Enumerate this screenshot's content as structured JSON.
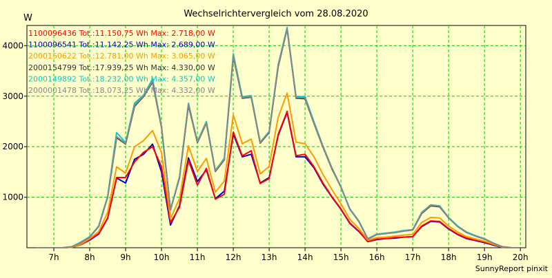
{
  "chart_data": {
    "type": "line",
    "title": "Wechselrichtervergleich vom 28.08.2020",
    "ylabel": "W",
    "xlabel": "",
    "footer": "SunnyReport pinxit",
    "grid": true,
    "ylim": [
      0,
      4400
    ],
    "xlim": [
      6.25,
      20.15
    ],
    "x_ticks": [
      {
        "x": 7,
        "label": "7h"
      },
      {
        "x": 8,
        "label": "8h"
      },
      {
        "x": 9,
        "label": "9h"
      },
      {
        "x": 10,
        "label": "10h"
      },
      {
        "x": 11,
        "label": "11h"
      },
      {
        "x": 12,
        "label": "12h"
      },
      {
        "x": 13,
        "label": "13h"
      },
      {
        "x": 14,
        "label": "14h"
      },
      {
        "x": 15,
        "label": "15h"
      },
      {
        "x": 16,
        "label": "16h"
      },
      {
        "x": 17,
        "label": "17h"
      },
      {
        "x": 18,
        "label": "18h"
      },
      {
        "x": 19,
        "label": "19h"
      },
      {
        "x": 20,
        "label": "20h"
      }
    ],
    "y_ticks": [
      {
        "y": 1000,
        "label": "1000"
      },
      {
        "y": 2000,
        "label": "2000"
      },
      {
        "y": 3000,
        "label": "3000"
      },
      {
        "y": 4000,
        "label": "4000"
      }
    ],
    "x": [
      6.5,
      6.75,
      7.0,
      7.25,
      7.5,
      7.75,
      8.0,
      8.25,
      8.5,
      8.75,
      9.0,
      9.25,
      9.5,
      9.75,
      10.0,
      10.25,
      10.5,
      10.75,
      11.0,
      11.25,
      11.5,
      11.75,
      12.0,
      12.25,
      12.5,
      12.75,
      13.0,
      13.25,
      13.5,
      13.75,
      14.0,
      14.25,
      14.5,
      14.75,
      15.0,
      15.25,
      15.5,
      15.75,
      16.0,
      16.25,
      16.5,
      16.75,
      17.0,
      17.25,
      17.5,
      17.75,
      18.0,
      18.25,
      18.5,
      18.75,
      19.0,
      19.25,
      19.5,
      19.75,
      20.0
    ],
    "series": [
      {
        "name": "1100096436",
        "legend": "1100096436 Tot.:11.150,75 Wh Max: 2.718,00 W",
        "color": "#FF0000",
        "values": [
          0,
          0,
          0,
          0,
          10,
          60,
          160,
          280,
          590,
          1390,
          1390,
          1700,
          1890,
          2000,
          1600,
          500,
          800,
          1730,
          1240,
          1570,
          960,
          1060,
          2290,
          1820,
          1920,
          1270,
          1370,
          2240,
          2700,
          1820,
          1850,
          1600,
          1280,
          1010,
          770,
          490,
          330,
          120,
          170,
          180,
          200,
          210,
          220,
          430,
          530,
          520,
          380,
          270,
          190,
          150,
          110,
          60,
          10,
          0,
          0
        ]
      },
      {
        "name": "1100096541",
        "legend": "1100096541 Tot.:11.142,25 Wh Max: 2.689,00 W",
        "color": "#0000CC",
        "values": [
          0,
          0,
          0,
          0,
          10,
          60,
          150,
          270,
          580,
          1380,
          1280,
          1750,
          1850,
          2050,
          1500,
          450,
          830,
          1780,
          1310,
          1540,
          970,
          1120,
          2250,
          1800,
          1850,
          1280,
          1390,
          2220,
          2680,
          1800,
          1800,
          1580,
          1260,
          1000,
          760,
          480,
          320,
          120,
          160,
          180,
          190,
          210,
          220,
          420,
          520,
          510,
          370,
          260,
          180,
          140,
          100,
          50,
          5,
          0,
          0
        ]
      },
      {
        "name": "2000150622",
        "legend": "2000150622 Tot.:12.781,00 Wh Max: 3.065,00 W",
        "color": "#FF9900",
        "values": [
          0,
          0,
          0,
          0,
          10,
          70,
          180,
          320,
          700,
          1600,
          1480,
          2000,
          2120,
          2320,
          1880,
          580,
          970,
          2020,
          1510,
          1770,
          1100,
          1320,
          2630,
          2060,
          2150,
          1460,
          1610,
          2580,
          3060,
          2090,
          2060,
          1800,
          1450,
          1150,
          870,
          560,
          380,
          150,
          200,
          210,
          230,
          250,
          260,
          500,
          600,
          590,
          430,
          310,
          220,
          170,
          130,
          70,
          10,
          0,
          0
        ]
      },
      {
        "name": "2000154799",
        "legend": "2000154799 Tot.:17.939,25 Wh Max: 4.330,00 W",
        "color": "#333333",
        "values": [
          0,
          0,
          0,
          0,
          20,
          100,
          210,
          420,
          1000,
          2180,
          2050,
          2800,
          2990,
          3280,
          2380,
          750,
          1380,
          2820,
          2080,
          2470,
          1510,
          1740,
          3780,
          2960,
          2980,
          2070,
          2280,
          3580,
          4330,
          2960,
          2950,
          2460,
          1990,
          1560,
          1200,
          760,
          520,
          170,
          260,
          280,
          300,
          330,
          350,
          680,
          830,
          810,
          590,
          420,
          300,
          230,
          170,
          90,
          20,
          0,
          0
        ]
      },
      {
        "name": "2000149892",
        "legend": "2000149892 Tot.:18.232,00 Wh Max: 4.357,00 W",
        "color": "#00CCCC",
        "values": [
          0,
          0,
          0,
          0,
          20,
          110,
          220,
          430,
          1020,
          2280,
          2080,
          2860,
          3020,
          3340,
          2400,
          760,
          1400,
          2860,
          2100,
          2500,
          1530,
          1770,
          3840,
          2990,
          3010,
          2090,
          2300,
          3620,
          4360,
          2990,
          2990,
          2490,
          2010,
          1580,
          1210,
          770,
          530,
          180,
          270,
          290,
          310,
          340,
          360,
          700,
          850,
          830,
          600,
          430,
          310,
          240,
          180,
          90,
          20,
          0,
          0
        ]
      },
      {
        "name": "2000001478",
        "legend": "2000001478 Tot.:18.073,25 Wh Max: 4.332,00 W",
        "color": "#888888",
        "values": [
          0,
          0,
          0,
          0,
          20,
          100,
          210,
          420,
          1000,
          2200,
          2060,
          2820,
          3000,
          3300,
          2390,
          750,
          1390,
          2840,
          2090,
          2480,
          1520,
          1750,
          3800,
          2970,
          2990,
          2080,
          2290,
          3600,
          4330,
          2970,
          2970,
          2470,
          2000,
          1570,
          1200,
          760,
          520,
          170,
          260,
          280,
          300,
          330,
          350,
          690,
          840,
          820,
          590,
          420,
          300,
          230,
          170,
          90,
          20,
          0,
          0
        ]
      }
    ]
  }
}
